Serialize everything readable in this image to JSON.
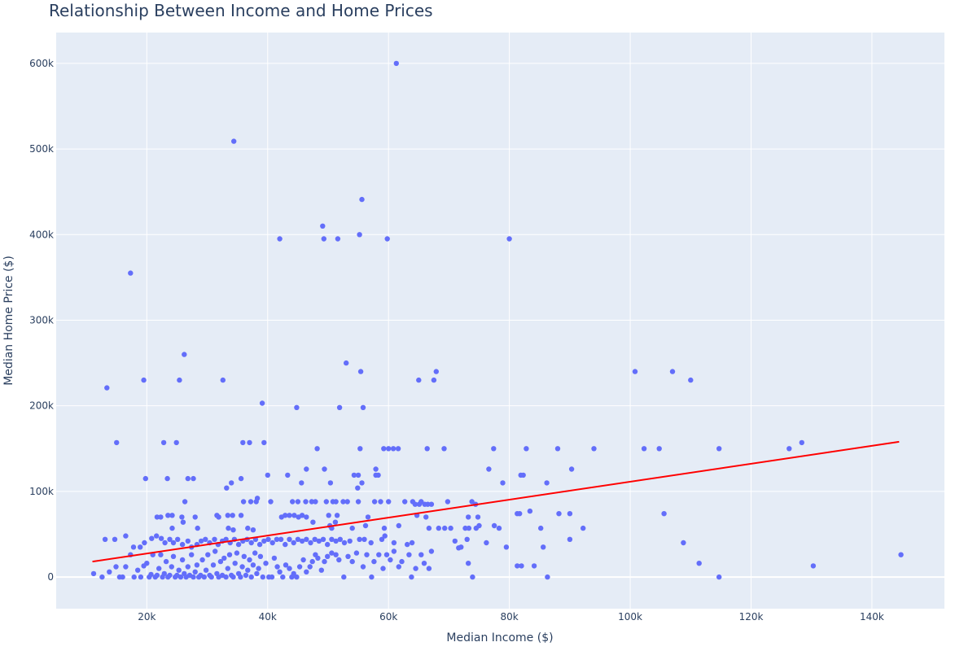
{
  "chart_data": {
    "type": "scatter",
    "title": "Relationship Between Income and Home Prices",
    "xlabel": "Median Income ($)",
    "ylabel": "Median Home Price ($)",
    "xlim": [
      5000,
      152000
    ],
    "ylim": [
      -37000,
      636000
    ],
    "x_ticks": [
      20000,
      40000,
      60000,
      80000,
      100000,
      120000,
      140000
    ],
    "x_tick_labels": [
      "20k",
      "40k",
      "60k",
      "80k",
      "100k",
      "120k",
      "140k"
    ],
    "y_ticks": [
      0,
      100000,
      200000,
      300000,
      400000,
      500000,
      600000
    ],
    "y_tick_labels": [
      "0",
      "100k",
      "200k",
      "300k",
      "400k",
      "500k",
      "600k"
    ],
    "grid": true,
    "colors": {
      "points": "#636efa",
      "trendline": "#ff0000",
      "plot_bg": "#e5ecf6",
      "grid": "#ffffff",
      "text": "#2a3f5f"
    },
    "trendline": {
      "x": [
        11000,
        144500
      ],
      "y": [
        18000,
        158000
      ]
    },
    "points": [
      [
        61300,
        600000
      ],
      [
        34400,
        509000
      ],
      [
        55600,
        441000
      ],
      [
        49100,
        410000
      ],
      [
        55200,
        400000
      ],
      [
        49300,
        395000
      ],
      [
        51600,
        395000
      ],
      [
        59800,
        395000
      ],
      [
        42000,
        395000
      ],
      [
        80000,
        395000
      ],
      [
        17300,
        355000
      ],
      [
        26200,
        260000
      ],
      [
        53000,
        250000
      ],
      [
        55400,
        240000
      ],
      [
        67900,
        240000
      ],
      [
        100800,
        240000
      ],
      [
        107000,
        240000
      ],
      [
        13400,
        221000
      ],
      [
        19500,
        230000
      ],
      [
        25400,
        230000
      ],
      [
        32600,
        230000
      ],
      [
        65000,
        230000
      ],
      [
        67500,
        230000
      ],
      [
        110000,
        230000
      ],
      [
        39100,
        203000
      ],
      [
        44800,
        198000
      ],
      [
        51900,
        198000
      ],
      [
        55800,
        198000
      ],
      [
        15000,
        157000
      ],
      [
        22800,
        157000
      ],
      [
        24900,
        157000
      ],
      [
        35900,
        157000
      ],
      [
        37000,
        157000
      ],
      [
        39400,
        157000
      ],
      [
        128400,
        157000
      ],
      [
        48200,
        150000
      ],
      [
        55300,
        150000
      ],
      [
        59200,
        150000
      ],
      [
        60000,
        150000
      ],
      [
        60800,
        150000
      ],
      [
        61600,
        150000
      ],
      [
        66400,
        150000
      ],
      [
        69200,
        150000
      ],
      [
        77400,
        150000
      ],
      [
        82800,
        150000
      ],
      [
        88000,
        150000
      ],
      [
        94000,
        150000
      ],
      [
        102300,
        150000
      ],
      [
        104800,
        150000
      ],
      [
        114700,
        150000
      ],
      [
        126300,
        150000
      ],
      [
        46400,
        126000
      ],
      [
        49400,
        126000
      ],
      [
        57900,
        126000
      ],
      [
        76600,
        126000
      ],
      [
        90300,
        126000
      ],
      [
        19800,
        115000
      ],
      [
        23400,
        115000
      ],
      [
        26800,
        115000
      ],
      [
        27700,
        115000
      ],
      [
        35600,
        115000
      ],
      [
        40000,
        119000
      ],
      [
        43300,
        119000
      ],
      [
        54300,
        119000
      ],
      [
        55000,
        119000
      ],
      [
        57900,
        119000
      ],
      [
        58300,
        119000
      ],
      [
        81900,
        119000
      ],
      [
        82300,
        119000
      ],
      [
        33200,
        104000
      ],
      [
        34000,
        110000
      ],
      [
        45600,
        110000
      ],
      [
        50400,
        110000
      ],
      [
        54900,
        104000
      ],
      [
        55600,
        110000
      ],
      [
        78900,
        110000
      ],
      [
        86200,
        110000
      ],
      [
        38300,
        92000
      ],
      [
        26300,
        88000
      ],
      [
        36000,
        88000
      ],
      [
        37200,
        88000
      ],
      [
        38100,
        88000
      ],
      [
        40500,
        88000
      ],
      [
        44100,
        88000
      ],
      [
        45000,
        88000
      ],
      [
        46300,
        88000
      ],
      [
        47300,
        88000
      ],
      [
        47900,
        88000
      ],
      [
        49700,
        88000
      ],
      [
        50800,
        88000
      ],
      [
        51300,
        88000
      ],
      [
        52500,
        88000
      ],
      [
        53200,
        88000
      ],
      [
        55000,
        88000
      ],
      [
        57700,
        88000
      ],
      [
        58700,
        88000
      ],
      [
        60000,
        88000
      ],
      [
        62700,
        88000
      ],
      [
        64000,
        88000
      ],
      [
        64400,
        85000
      ],
      [
        65100,
        85000
      ],
      [
        65400,
        88000
      ],
      [
        66000,
        85000
      ],
      [
        66500,
        85000
      ],
      [
        67100,
        85000
      ],
      [
        69800,
        88000
      ],
      [
        73800,
        88000
      ],
      [
        74400,
        85000
      ],
      [
        21700,
        70000
      ],
      [
        22300,
        70000
      ],
      [
        23500,
        72000
      ],
      [
        24200,
        72000
      ],
      [
        25800,
        70000
      ],
      [
        28000,
        70000
      ],
      [
        31600,
        72000
      ],
      [
        31900,
        70000
      ],
      [
        33400,
        72000
      ],
      [
        34200,
        72000
      ],
      [
        35600,
        72000
      ],
      [
        42300,
        70000
      ],
      [
        42900,
        72000
      ],
      [
        43600,
        72000
      ],
      [
        44400,
        72000
      ],
      [
        45100,
        70000
      ],
      [
        45700,
        72000
      ],
      [
        46400,
        70000
      ],
      [
        50100,
        72000
      ],
      [
        51500,
        72000
      ],
      [
        56600,
        70000
      ],
      [
        64700,
        72000
      ],
      [
        66200,
        70000
      ],
      [
        73200,
        70000
      ],
      [
        74800,
        70000
      ],
      [
        81300,
        74000
      ],
      [
        81700,
        74000
      ],
      [
        83400,
        77000
      ],
      [
        88200,
        74000
      ],
      [
        90000,
        74000
      ],
      [
        105600,
        74000
      ],
      [
        24200,
        57000
      ],
      [
        26000,
        64000
      ],
      [
        28400,
        57000
      ],
      [
        33500,
        57000
      ],
      [
        34300,
        55000
      ],
      [
        36700,
        57000
      ],
      [
        37600,
        55000
      ],
      [
        47500,
        64000
      ],
      [
        50300,
        60000
      ],
      [
        50600,
        57000
      ],
      [
        51200,
        64000
      ],
      [
        54000,
        57000
      ],
      [
        56200,
        60000
      ],
      [
        59300,
        57000
      ],
      [
        61700,
        60000
      ],
      [
        66700,
        57000
      ],
      [
        68300,
        57000
      ],
      [
        69300,
        57000
      ],
      [
        70300,
        57000
      ],
      [
        72700,
        57000
      ],
      [
        73300,
        57000
      ],
      [
        74500,
        57000
      ],
      [
        75000,
        60000
      ],
      [
        77500,
        60000
      ],
      [
        78300,
        57000
      ],
      [
        85200,
        57000
      ],
      [
        92200,
        57000
      ],
      [
        13100,
        44000
      ],
      [
        14700,
        44000
      ],
      [
        16500,
        48000
      ],
      [
        17800,
        35000
      ],
      [
        18900,
        35000
      ],
      [
        19600,
        40000
      ],
      [
        20800,
        45000
      ],
      [
        21600,
        48000
      ],
      [
        22400,
        45000
      ],
      [
        23000,
        40000
      ],
      [
        23800,
        44000
      ],
      [
        24400,
        40000
      ],
      [
        25100,
        44000
      ],
      [
        25900,
        38000
      ],
      [
        26800,
        42000
      ],
      [
        27400,
        35000
      ],
      [
        28300,
        38000
      ],
      [
        29000,
        42000
      ],
      [
        29700,
        44000
      ],
      [
        30400,
        40000
      ],
      [
        31200,
        44000
      ],
      [
        31800,
        38000
      ],
      [
        32500,
        42000
      ],
      [
        33100,
        44000
      ],
      [
        33800,
        40000
      ],
      [
        34500,
        44000
      ],
      [
        35200,
        38000
      ],
      [
        35900,
        42000
      ],
      [
        36600,
        44000
      ],
      [
        37300,
        40000
      ],
      [
        38000,
        44000
      ],
      [
        38700,
        38000
      ],
      [
        39400,
        42000
      ],
      [
        40100,
        44000
      ],
      [
        40800,
        40000
      ],
      [
        41500,
        44000
      ],
      [
        42200,
        44000
      ],
      [
        42900,
        38000
      ],
      [
        43600,
        44000
      ],
      [
        44300,
        40000
      ],
      [
        45000,
        44000
      ],
      [
        45700,
        42000
      ],
      [
        46400,
        44000
      ],
      [
        47100,
        40000
      ],
      [
        47800,
        44000
      ],
      [
        48500,
        42000
      ],
      [
        49200,
        44000
      ],
      [
        49900,
        38000
      ],
      [
        50600,
        44000
      ],
      [
        51300,
        42000
      ],
      [
        52000,
        44000
      ],
      [
        52700,
        40000
      ],
      [
        53600,
        42000
      ],
      [
        55200,
        44000
      ],
      [
        56000,
        44000
      ],
      [
        57100,
        40000
      ],
      [
        58900,
        44000
      ],
      [
        59400,
        48000
      ],
      [
        60900,
        40000
      ],
      [
        63100,
        38000
      ],
      [
        63900,
        40000
      ],
      [
        71000,
        42000
      ],
      [
        72000,
        35000
      ],
      [
        73000,
        44000
      ],
      [
        76200,
        40000
      ],
      [
        79500,
        35000
      ],
      [
        85600,
        35000
      ],
      [
        90000,
        44000
      ],
      [
        108800,
        40000
      ],
      [
        11200,
        4000
      ],
      [
        12600,
        0
      ],
      [
        13800,
        6000
      ],
      [
        14900,
        12000
      ],
      [
        15500,
        0
      ],
      [
        16000,
        0
      ],
      [
        16500,
        12000
      ],
      [
        17300,
        26000
      ],
      [
        17900,
        0
      ],
      [
        18500,
        8000
      ],
      [
        19000,
        0
      ],
      [
        19500,
        13000
      ],
      [
        20000,
        16000
      ],
      [
        20400,
        0
      ],
      [
        20700,
        3000
      ],
      [
        21000,
        26000
      ],
      [
        21400,
        0
      ],
      [
        21700,
        2000
      ],
      [
        22000,
        10000
      ],
      [
        22300,
        26000
      ],
      [
        22600,
        0
      ],
      [
        22900,
        4000
      ],
      [
        23200,
        18000
      ],
      [
        23500,
        0
      ],
      [
        23800,
        2000
      ],
      [
        24100,
        12000
      ],
      [
        24400,
        24000
      ],
      [
        24700,
        0
      ],
      [
        25000,
        2000
      ],
      [
        25300,
        8000
      ],
      [
        25600,
        0
      ],
      [
        25900,
        20000
      ],
      [
        26200,
        4000
      ],
      [
        26500,
        0
      ],
      [
        26800,
        12000
      ],
      [
        27100,
        2000
      ],
      [
        27400,
        26000
      ],
      [
        27700,
        0
      ],
      [
        28000,
        6000
      ],
      [
        28300,
        14000
      ],
      [
        28600,
        0
      ],
      [
        28900,
        2000
      ],
      [
        29200,
        20000
      ],
      [
        29500,
        0
      ],
      [
        29800,
        8000
      ],
      [
        30100,
        26000
      ],
      [
        30400,
        2000
      ],
      [
        30700,
        0
      ],
      [
        31000,
        14000
      ],
      [
        31300,
        30000
      ],
      [
        31600,
        4000
      ],
      [
        31900,
        0
      ],
      [
        32200,
        18000
      ],
      [
        32500,
        2000
      ],
      [
        32800,
        22000
      ],
      [
        33100,
        0
      ],
      [
        33400,
        10000
      ],
      [
        33700,
        26000
      ],
      [
        34000,
        2000
      ],
      [
        34300,
        0
      ],
      [
        34600,
        16000
      ],
      [
        34900,
        28000
      ],
      [
        35200,
        4000
      ],
      [
        35500,
        0
      ],
      [
        35800,
        12000
      ],
      [
        36100,
        24000
      ],
      [
        36400,
        2000
      ],
      [
        36700,
        8000
      ],
      [
        37000,
        20000
      ],
      [
        37300,
        0
      ],
      [
        37600,
        14000
      ],
      [
        37900,
        28000
      ],
      [
        38200,
        4000
      ],
      [
        38500,
        10000
      ],
      [
        38800,
        24000
      ],
      [
        39200,
        0
      ],
      [
        39700,
        16000
      ],
      [
        40200,
        0
      ],
      [
        40700,
        0
      ],
      [
        41100,
        22000
      ],
      [
        41600,
        12000
      ],
      [
        42000,
        6000
      ],
      [
        42500,
        0
      ],
      [
        43000,
        14000
      ],
      [
        43600,
        10000
      ],
      [
        44000,
        0
      ],
      [
        44300,
        4000
      ],
      [
        44800,
        0
      ],
      [
        45300,
        12000
      ],
      [
        45900,
        20000
      ],
      [
        46400,
        6000
      ],
      [
        47000,
        12000
      ],
      [
        47400,
        18000
      ],
      [
        47900,
        26000
      ],
      [
        48300,
        22000
      ],
      [
        48900,
        8000
      ],
      [
        49400,
        18000
      ],
      [
        49900,
        24000
      ],
      [
        50600,
        28000
      ],
      [
        51300,
        26000
      ],
      [
        51800,
        20000
      ],
      [
        52600,
        0
      ],
      [
        53300,
        24000
      ],
      [
        54000,
        18000
      ],
      [
        54700,
        28000
      ],
      [
        55800,
        12000
      ],
      [
        56400,
        26000
      ],
      [
        57200,
        0
      ],
      [
        57600,
        18000
      ],
      [
        58400,
        26000
      ],
      [
        59100,
        10000
      ],
      [
        59700,
        26000
      ],
      [
        60300,
        20000
      ],
      [
        60900,
        30000
      ],
      [
        61700,
        12000
      ],
      [
        62200,
        18000
      ],
      [
        63400,
        26000
      ],
      [
        63800,
        0
      ],
      [
        64500,
        10000
      ],
      [
        65400,
        26000
      ],
      [
        65900,
        16000
      ],
      [
        66700,
        10000
      ],
      [
        67100,
        30000
      ],
      [
        71600,
        34000
      ],
      [
        73200,
        16000
      ],
      [
        73900,
        0
      ],
      [
        81300,
        13000
      ],
      [
        82000,
        13000
      ],
      [
        84100,
        13000
      ],
      [
        86300,
        0
      ],
      [
        111400,
        16000
      ],
      [
        114700,
        0
      ],
      [
        130300,
        13000
      ],
      [
        144800,
        26000
      ]
    ]
  }
}
